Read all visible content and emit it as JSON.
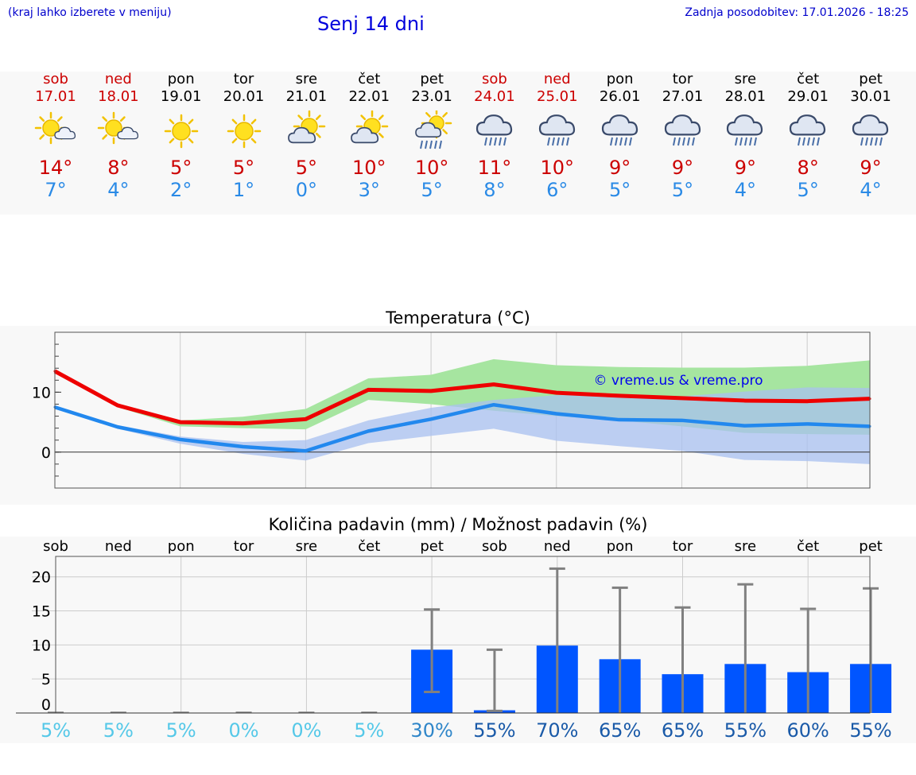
{
  "header": {
    "menu_hint": "(kraj lahko izberete v meniju)",
    "title": "Senj 14 dni",
    "updated": "Zadnja posodobitev: 17.01.2026 - 18:25"
  },
  "days": [
    {
      "name": "sob",
      "date": "17.01",
      "weekend": true,
      "icon": "sun-cloud-icon",
      "max": "14°",
      "min": "7°"
    },
    {
      "name": "ned",
      "date": "18.01",
      "weekend": true,
      "icon": "sun-cloud-icon",
      "max": "8°",
      "min": "4°"
    },
    {
      "name": "pon",
      "date": "19.01",
      "weekend": false,
      "icon": "sun-icon",
      "max": "5°",
      "min": "2°"
    },
    {
      "name": "tor",
      "date": "20.01",
      "weekend": false,
      "icon": "sun-icon",
      "max": "5°",
      "min": "1°"
    },
    {
      "name": "sre",
      "date": "21.01",
      "weekend": false,
      "icon": "partly-cloudy-icon",
      "max": "5°",
      "min": "0°"
    },
    {
      "name": "čet",
      "date": "22.01",
      "weekend": false,
      "icon": "partly-cloudy-icon",
      "max": "10°",
      "min": "3°"
    },
    {
      "name": "pet",
      "date": "23.01",
      "weekend": false,
      "icon": "sun-rain-icon",
      "max": "10°",
      "min": "5°"
    },
    {
      "name": "sob",
      "date": "24.01",
      "weekend": true,
      "icon": "cloud-rain-icon",
      "max": "11°",
      "min": "8°"
    },
    {
      "name": "ned",
      "date": "25.01",
      "weekend": true,
      "icon": "cloud-rain-icon",
      "max": "10°",
      "min": "6°"
    },
    {
      "name": "pon",
      "date": "26.01",
      "weekend": false,
      "icon": "cloud-rain-icon",
      "max": "9°",
      "min": "5°"
    },
    {
      "name": "tor",
      "date": "27.01",
      "weekend": false,
      "icon": "cloud-rain-icon",
      "max": "9°",
      "min": "5°"
    },
    {
      "name": "sre",
      "date": "28.01",
      "weekend": false,
      "icon": "cloud-rain-icon",
      "max": "9°",
      "min": "4°"
    },
    {
      "name": "čet",
      "date": "29.01",
      "weekend": false,
      "icon": "cloud-rain-icon",
      "max": "8°",
      "min": "5°"
    },
    {
      "name": "pet",
      "date": "30.01",
      "weekend": false,
      "icon": "cloud-rain-icon",
      "max": "9°",
      "min": "4°"
    }
  ],
  "colors": {
    "max": "#ee0000",
    "min": "#2288ee",
    "max_band": "#a6e5a0",
    "min_band": "#a8c0f0",
    "overlap": "#7cc4a8",
    "bar": "#0055ff",
    "err": "#808080"
  },
  "chart_data": [
    {
      "type": "line",
      "title": "Temperatura (°C)",
      "watermark": "© vreme.us & vreme.pro",
      "x": [
        0,
        1,
        2,
        3,
        4,
        5,
        6,
        7,
        8,
        9,
        10,
        11,
        12,
        13
      ],
      "ylim": [
        -6,
        20
      ],
      "yticks": [
        0,
        10
      ],
      "ytick_labels": [
        "0",
        "10"
      ],
      "series": [
        {
          "name": "max",
          "values": [
            13.5,
            7.8,
            5.0,
            4.8,
            5.5,
            10.4,
            10.2,
            11.3,
            9.9,
            9.4,
            9.0,
            8.6,
            8.5,
            8.9
          ],
          "band_low": [
            13.3,
            7.5,
            4.3,
            4.0,
            3.8,
            8.7,
            8.0,
            6.9,
            6.0,
            5.3,
            4.3,
            3.2,
            3.0,
            2.9
          ],
          "band_high": [
            13.7,
            8.1,
            5.3,
            5.9,
            7.2,
            12.3,
            12.9,
            15.5,
            14.5,
            14.2,
            14.1,
            14.1,
            14.4,
            15.3
          ]
        },
        {
          "name": "min",
          "values": [
            7.5,
            4.2,
            2.1,
            0.9,
            0.2,
            3.5,
            5.5,
            7.9,
            6.4,
            5.4,
            5.3,
            4.4,
            4.7,
            4.3
          ],
          "band_low": [
            7.2,
            3.9,
            1.4,
            -0.3,
            -1.4,
            1.5,
            2.7,
            3.9,
            1.9,
            1.0,
            0.2,
            -1.3,
            -1.5,
            -2.0
          ],
          "band_high": [
            7.7,
            4.5,
            2.6,
            1.7,
            2.0,
            5.3,
            7.4,
            8.7,
            9.5,
            9.5,
            9.3,
            10.1,
            10.8,
            10.7
          ]
        }
      ]
    },
    {
      "type": "bar",
      "title": "Količina padavin (mm) / Možnost padavin (%)",
      "categories": [
        "sob",
        "ned",
        "pon",
        "tor",
        "sre",
        "čet",
        "pet",
        "sob",
        "ned",
        "pon",
        "tor",
        "sre",
        "čet",
        "pet"
      ],
      "ylim": [
        0,
        23
      ],
      "yticks": [
        0,
        5,
        10,
        15,
        20
      ],
      "ytick_labels": [
        "0",
        "5",
        "10",
        "15",
        "20"
      ],
      "values": [
        0,
        0,
        0,
        0,
        0,
        0,
        9.3,
        0.4,
        9.9,
        7.9,
        5.7,
        7.2,
        6.0,
        7.2
      ],
      "err_low": [
        0,
        0,
        0,
        0,
        0,
        0,
        3.1,
        0.3,
        0,
        0,
        0,
        0,
        0,
        0
      ],
      "err_high": [
        0,
        0,
        0,
        0,
        0,
        0,
        15.2,
        9.3,
        21.2,
        18.4,
        15.5,
        18.9,
        15.3,
        18.3
      ],
      "probability": [
        "5%",
        "5%",
        "5%",
        "0%",
        "0%",
        "5%",
        "30%",
        "55%",
        "70%",
        "65%",
        "65%",
        "55%",
        "60%",
        "55%"
      ],
      "probability_values": [
        5,
        5,
        5,
        0,
        0,
        5,
        30,
        55,
        70,
        65,
        65,
        55,
        60,
        55
      ]
    }
  ]
}
